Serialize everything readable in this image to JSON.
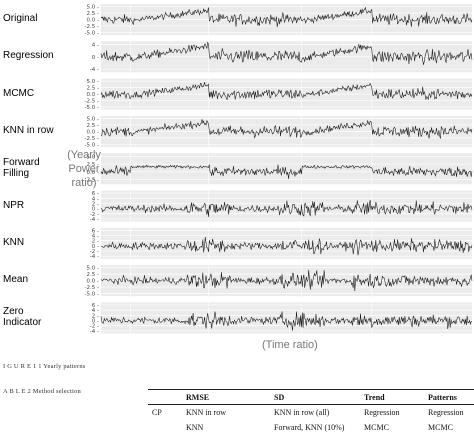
{
  "chart_data": {
    "type": "line",
    "panels": [
      {
        "label": "Original",
        "yticks": [
          "5.0 -",
          "2.5 -",
          "0.0 -",
          "-2.5 -",
          "-5.0 -"
        ],
        "yrange": [
          -6,
          6
        ],
        "pattern": "ramp"
      },
      {
        "label": "Regression",
        "yticks": [
          "4 -",
          "0 -",
          "-4 -"
        ],
        "yrange": [
          -5,
          5
        ],
        "pattern": "ramp"
      },
      {
        "label": "MCMC",
        "yticks": [
          "5.0 -",
          "2.5 -",
          "0.0 -",
          "-2.5 -",
          "-5.0 -"
        ],
        "yrange": [
          -6,
          6
        ],
        "pattern": "ramp"
      },
      {
        "label": "KNN in row",
        "yticks": [
          "5.0 -",
          "2.5 -",
          "0.0 -",
          "-2.5 -",
          "-5.0 -"
        ],
        "yrange": [
          -6,
          6
        ],
        "pattern": "ramp"
      },
      {
        "label": "Forward\nFilling",
        "yticks": [
          "5.0 -",
          "2.5 -",
          "0.0 -",
          "-2.5 -"
        ],
        "yrange": [
          -4,
          6
        ],
        "pattern": "step"
      },
      {
        "label": "NPR",
        "yticks": [
          "6 -",
          "4 -",
          "2 -",
          "0 -",
          "-2 -",
          "-4 -"
        ],
        "yrange": [
          -5,
          7
        ],
        "pattern": "noise"
      },
      {
        "label": "KNN",
        "yticks": [
          "6 -",
          "4 -",
          "2 -",
          "0 -",
          "-2 -",
          "-4 -"
        ],
        "yrange": [
          -5,
          7
        ],
        "pattern": "noise"
      },
      {
        "label": "Mean",
        "yticks": [
          "5.0 -",
          "2.5 -",
          "0.0 -",
          "-2.5 -",
          "-5.0 -"
        ],
        "yrange": [
          -6,
          6
        ],
        "pattern": "noise"
      },
      {
        "label": "Zero\nIndicator",
        "yticks": [
          "6 -",
          "4 -",
          "2 -",
          "0 -",
          "-2 -",
          "-4 -"
        ],
        "yrange": [
          -5,
          7
        ],
        "pattern": "noise"
      }
    ],
    "ylabel": "(Yearly\nPower\nratio)",
    "xlabel": "(Time ratio)"
  },
  "caption": {
    "figure": "I G U R E  1 1    Yearly patterns",
    "table": "A B L E  2    Method selection"
  },
  "table": {
    "headers": [
      "RMSE",
      "SD",
      "Trend",
      "Patterns"
    ],
    "rows": [
      {
        "group": "CP",
        "cells": [
          "KNN in row",
          "KNN in row (all)",
          "Regression",
          "Regression"
        ]
      },
      {
        "group": "",
        "cells": [
          "KNN",
          "Forward, KNN (10%)",
          "MCMC",
          "MCMC"
        ]
      }
    ]
  },
  "colors": {
    "line": "#111111",
    "grid": "#dddddd",
    "panel_bg": "#ebebeb"
  }
}
